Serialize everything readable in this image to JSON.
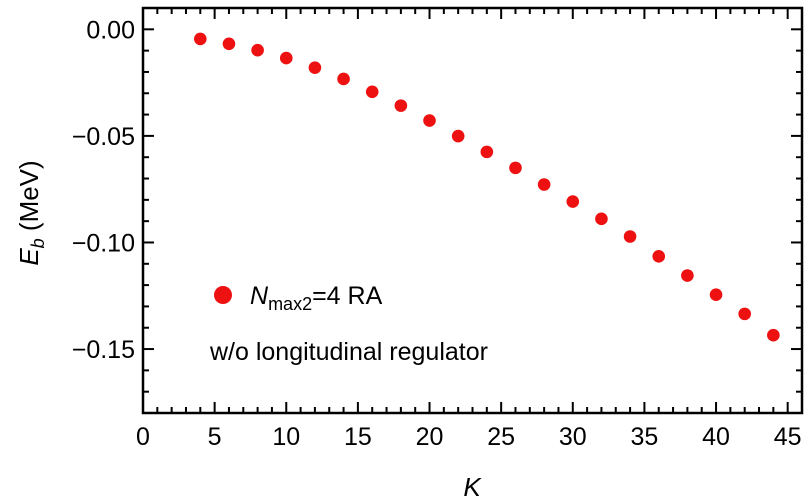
{
  "chart_data": {
    "type": "scatter",
    "xlabel": "K",
    "ylabel_main": "E",
    "ylabel_sub": "b",
    "ylabel_unit": " (MeV)",
    "xlim": [
      0,
      46
    ],
    "ylim": [
      -0.18,
      0.01
    ],
    "xticks_major": [
      0,
      5,
      10,
      15,
      20,
      25,
      30,
      35,
      40,
      45
    ],
    "xtick_labels": [
      "0",
      "5",
      "10",
      "15",
      "20",
      "25",
      "30",
      "35",
      "40",
      "45"
    ],
    "yticks_major": [
      0.0,
      -0.05,
      -0.1,
      -0.15
    ],
    "ytick_labels": [
      "0.00",
      "−0.05",
      "−0.10",
      "−0.15"
    ],
    "grid": false,
    "marker_color": "#ee1111",
    "series": [
      {
        "name_main": "N",
        "name_sub": "max2",
        "name_rest": "=4 RA",
        "x": [
          4,
          6,
          8,
          10,
          12,
          14,
          16,
          18,
          20,
          22,
          24,
          26,
          28,
          30,
          32,
          34,
          36,
          38,
          40,
          42,
          44
        ],
        "y": [
          -0.0045,
          -0.0068,
          -0.0098,
          -0.0135,
          -0.018,
          -0.0233,
          -0.0293,
          -0.0358,
          -0.0428,
          -0.0501,
          -0.0575,
          -0.065,
          -0.0728,
          -0.0808,
          -0.0889,
          -0.0972,
          -0.1065,
          -0.1155,
          -0.1245,
          -0.1335,
          -0.1435
        ]
      }
    ],
    "legend_position": "lower-left",
    "annotation": "w/o longitudinal regulator"
  }
}
